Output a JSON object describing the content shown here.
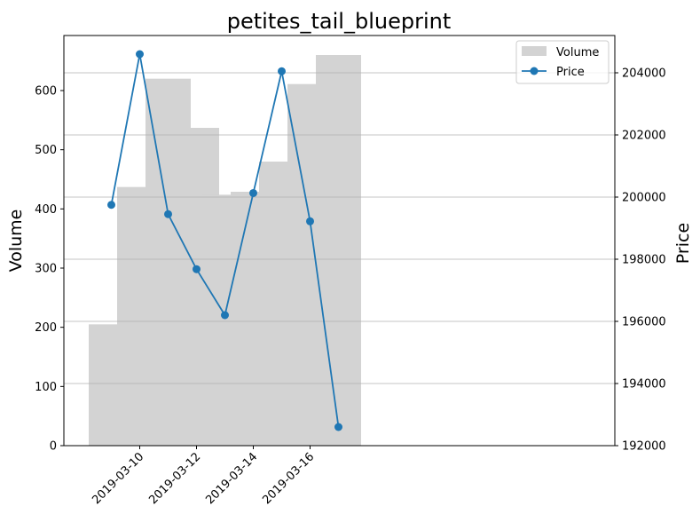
{
  "chart_data": {
    "type": "bar",
    "title": "petites_tail_blueprint",
    "xlabel": "",
    "ylabel": "Volume",
    "y2label": "Price",
    "dates": [
      "2019-03-09",
      "2019-03-10",
      "2019-03-11",
      "2019-03-12",
      "2019-03-13",
      "2019-03-14",
      "2019-03-15",
      "2019-03-16",
      "2019-03-17"
    ],
    "x_tick_labels": [
      "2019-03-10",
      "2019-03-12",
      "2019-03-14",
      "2019-03-16"
    ],
    "ylim": [
      0,
      693
    ],
    "y2lim": [
      192000,
      205200
    ],
    "y_ticks": [
      0,
      100,
      200,
      300,
      400,
      500,
      600
    ],
    "y2_ticks": [
      192000,
      194000,
      196000,
      198000,
      200000,
      202000,
      204000
    ],
    "grid": "horizontal (secondary axis)",
    "legend_position": "top-right",
    "series": [
      {
        "name": "Volume",
        "kind": "bar",
        "axis": "left",
        "color": "#d3d3d3",
        "values": [
          205,
          437,
          620,
          537,
          424,
          429,
          480,
          611,
          660
        ]
      },
      {
        "name": "Price",
        "kind": "line",
        "axis": "right",
        "color": "#1f77b4",
        "values": [
          199750,
          204600,
          199450,
          197680,
          196200,
          200130,
          204050,
          199220,
          192600
        ]
      }
    ]
  }
}
